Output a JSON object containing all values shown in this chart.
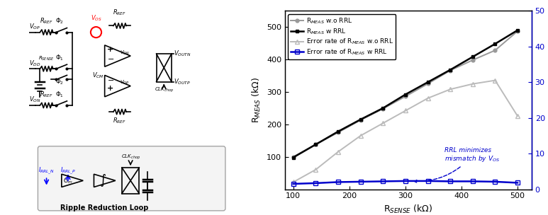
{
  "r_sense": [
    100,
    140,
    180,
    220,
    260,
    300,
    340,
    380,
    420,
    460,
    500
  ],
  "r_meas_w_rrl": [
    98,
    138,
    178,
    215,
    250,
    292,
    330,
    368,
    408,
    448,
    490
  ],
  "r_meas_wo_rrl": [
    100,
    138,
    175,
    213,
    248,
    286,
    325,
    366,
    398,
    428,
    487
  ],
  "error_w_rrl": [
    1.5,
    1.7,
    2.0,
    2.1,
    2.2,
    2.3,
    2.3,
    2.2,
    2.2,
    2.1,
    1.8
  ],
  "error_wo_rrl": [
    2.0,
    5.5,
    10.5,
    15.0,
    18.5,
    22.0,
    25.5,
    28.0,
    29.5,
    30.5,
    20.5
  ],
  "xlabel": "R$_{SENSE}$ (kΩ)",
  "ylabel_left": "R$_{MEAS}$ (kΩ)",
  "ylabel_right": "Error rate (%)",
  "legend_entries": [
    "R$_{MEAS}$ w.o RRL",
    "R$_{MEAS}$ w RRL",
    "Error rate of R$_{MEAS}$ w.o RRL",
    "Error rate of R$_{MEAS}$ w RRL"
  ],
  "annotation_text": "RRL minimizes\nmismatch by V$_{OS}$",
  "xlim": [
    85,
    525
  ],
  "ylim_left": [
    0,
    550
  ],
  "ylim_right": [
    0,
    50
  ],
  "xticks": [
    100,
    200,
    300,
    400,
    500
  ],
  "yticks_left": [
    100,
    200,
    300,
    400,
    500
  ],
  "yticks_right": [
    0,
    10,
    20,
    30,
    40,
    50
  ],
  "color_black": "#000000",
  "color_gray": "#999999",
  "color_gray_light": "#cccccc",
  "color_blue": "#0000cc",
  "color_red": "#cc0000",
  "background_color": "#ffffff"
}
